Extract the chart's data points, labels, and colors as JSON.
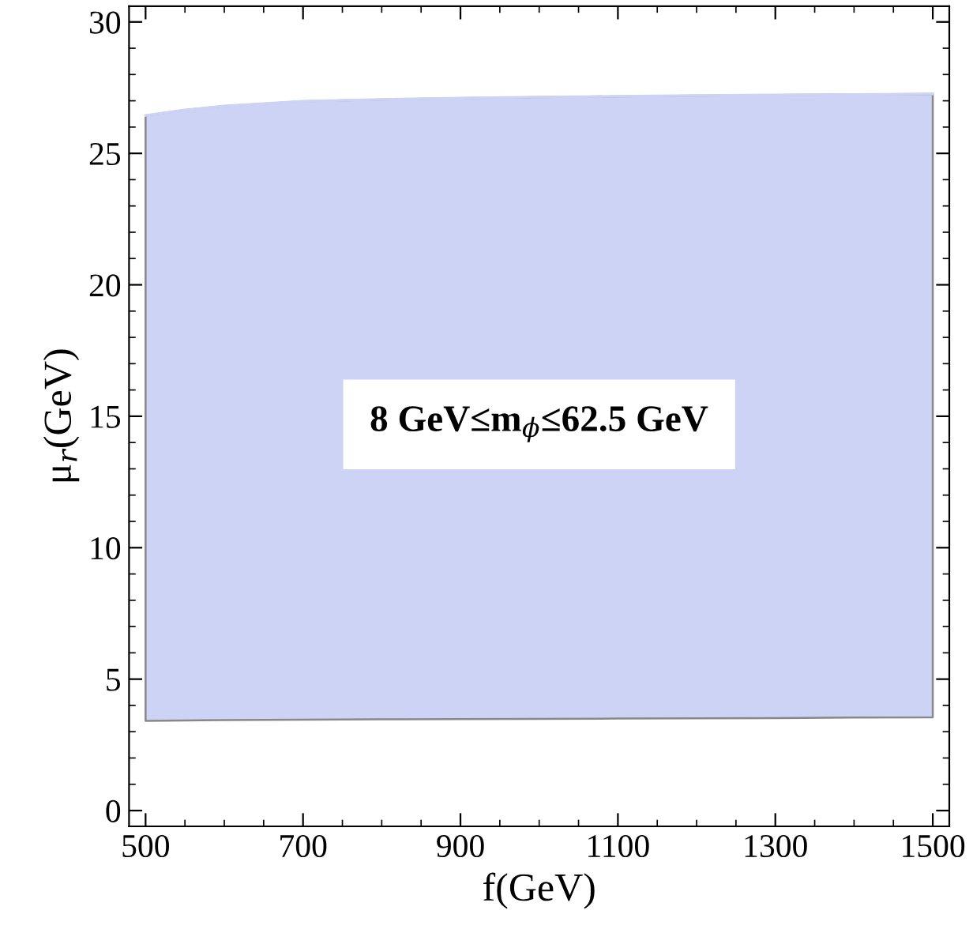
{
  "chart_data": {
    "type": "line",
    "xlabel": "f(GeV)",
    "ylabel": "μ$_{r}$(GeV)",
    "x": [
      500,
      550,
      600,
      700,
      800,
      900,
      1000,
      1100,
      1200,
      1300,
      1400,
      1500
    ],
    "series": [
      {
        "color": "#cdd3f5",
        "values": [
          26.44,
          26.65,
          26.8,
          26.98,
          27.05,
          27.1,
          27.14,
          27.17,
          27.2,
          27.22,
          27.24,
          27.26
        ],
        "upper": [
          26.44,
          26.65,
          26.8,
          26.98,
          27.05,
          27.1,
          27.14,
          27.17,
          27.2,
          27.22,
          27.24,
          27.26
        ],
        "lower": [
          3.41,
          3.43,
          3.44,
          3.46,
          3.47,
          3.48,
          3.49,
          3.5,
          3.51,
          3.52,
          3.54,
          3.55
        ]
      }
    ],
    "xlim": [
      479,
      1521
    ],
    "ylim": [
      -0.6,
      30.6
    ],
    "xticks": [
      500,
      700,
      900,
      1100,
      1300,
      1500
    ],
    "yticks": [
      0,
      5,
      10,
      15,
      20,
      25,
      30
    ],
    "grid": false,
    "annotations": [
      "8 GeV≤m$_{ϕ}$≤62.5 GeV"
    ]
  }
}
